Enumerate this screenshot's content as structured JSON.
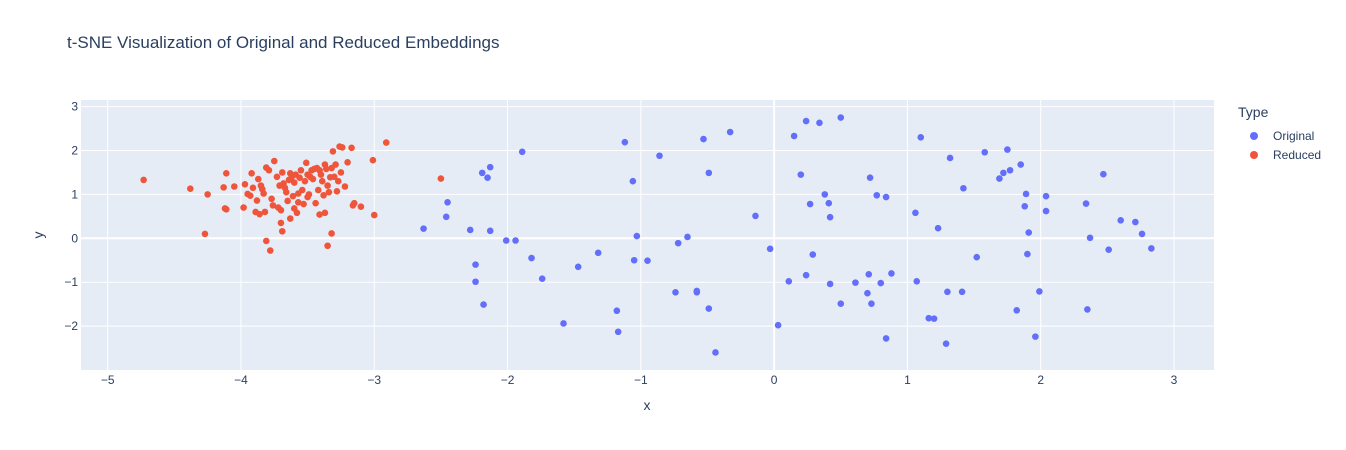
{
  "chart_data": {
    "type": "scatter",
    "title": "t-SNE Visualization of Original and Reduced Embeddings",
    "xlabel": "x",
    "ylabel": "y",
    "xlim": [
      -5.2,
      3.3
    ],
    "ylim": [
      -3.0,
      3.15
    ],
    "xticks": [
      -5,
      -4,
      -3,
      -2,
      -1,
      0,
      1,
      2,
      3
    ],
    "yticks": [
      -2,
      -1,
      0,
      1,
      2,
      3
    ],
    "xtick_labels": [
      "−5",
      "−4",
      "−3",
      "−2",
      "−1",
      "0",
      "1",
      "2",
      "3"
    ],
    "ytick_labels": [
      "−2",
      "−1",
      "0",
      "1",
      "2",
      "3"
    ],
    "grid": true,
    "legend_title": "Type",
    "legend_position": "top-right",
    "series": [
      {
        "name": "Original",
        "color": "#636efa",
        "points": [
          [
            -2.63,
            0.22
          ],
          [
            -2.45,
            0.82
          ],
          [
            -2.46,
            0.49
          ],
          [
            -2.28,
            0.19
          ],
          [
            -2.24,
            -0.6
          ],
          [
            -2.24,
            -0.99
          ],
          [
            -2.19,
            1.49
          ],
          [
            -2.15,
            1.38
          ],
          [
            -2.13,
            1.62
          ],
          [
            -2.13,
            0.17
          ],
          [
            -2.18,
            -1.51
          ],
          [
            -2.01,
            -0.05
          ],
          [
            -1.94,
            -0.05
          ],
          [
            -1.89,
            1.97
          ],
          [
            -1.82,
            -0.45
          ],
          [
            -1.74,
            -0.92
          ],
          [
            -1.58,
            -1.94
          ],
          [
            -1.47,
            -0.65
          ],
          [
            -1.32,
            -0.33
          ],
          [
            -1.18,
            -1.65
          ],
          [
            -1.17,
            -2.13
          ],
          [
            -1.12,
            2.19
          ],
          [
            -1.06,
            1.3
          ],
          [
            -1.03,
            0.05
          ],
          [
            -1.05,
            -0.5
          ],
          [
            -0.95,
            -0.51
          ],
          [
            -0.86,
            1.88
          ],
          [
            -0.74,
            -1.23
          ],
          [
            -0.72,
            -0.11
          ],
          [
            -0.65,
            0.03
          ],
          [
            -0.58,
            -1.2
          ],
          [
            -0.58,
            -1.23
          ],
          [
            -0.53,
            2.26
          ],
          [
            -0.49,
            1.49
          ],
          [
            -0.49,
            -1.6
          ],
          [
            -0.44,
            -2.6
          ],
          [
            -0.33,
            2.42
          ],
          [
            -0.14,
            0.51
          ],
          [
            -0.03,
            -0.24
          ],
          [
            0.03,
            -1.98
          ],
          [
            0.11,
            -0.98
          ],
          [
            0.15,
            2.33
          ],
          [
            0.2,
            1.45
          ],
          [
            0.24,
            2.67
          ],
          [
            0.24,
            -0.84
          ],
          [
            0.27,
            0.78
          ],
          [
            0.29,
            -0.37
          ],
          [
            0.34,
            2.63
          ],
          [
            0.38,
            1.0
          ],
          [
            0.41,
            0.8
          ],
          [
            0.42,
            0.48
          ],
          [
            0.42,
            -1.04
          ],
          [
            0.5,
            2.75
          ],
          [
            0.5,
            -1.49
          ],
          [
            0.61,
            -1.01
          ],
          [
            0.7,
            -1.25
          ],
          [
            0.71,
            -0.82
          ],
          [
            0.72,
            1.38
          ],
          [
            0.73,
            -1.49
          ],
          [
            0.77,
            0.98
          ],
          [
            0.8,
            -1.02
          ],
          [
            0.84,
            0.94
          ],
          [
            0.84,
            -2.28
          ],
          [
            0.88,
            -0.8
          ],
          [
            1.06,
            0.58
          ],
          [
            1.07,
            -0.98
          ],
          [
            1.1,
            2.3
          ],
          [
            1.16,
            -1.82
          ],
          [
            1.2,
            -1.83
          ],
          [
            1.23,
            0.23
          ],
          [
            1.29,
            -2.4
          ],
          [
            1.3,
            -1.22
          ],
          [
            1.32,
            1.83
          ],
          [
            1.41,
            -1.22
          ],
          [
            1.42,
            1.14
          ],
          [
            1.52,
            -0.43
          ],
          [
            1.58,
            1.96
          ],
          [
            1.69,
            1.36
          ],
          [
            1.72,
            1.49
          ],
          [
            1.75,
            2.02
          ],
          [
            1.77,
            1.55
          ],
          [
            1.82,
            -1.64
          ],
          [
            1.85,
            1.68
          ],
          [
            1.88,
            0.73
          ],
          [
            1.89,
            1.01
          ],
          [
            1.9,
            -0.36
          ],
          [
            1.91,
            0.13
          ],
          [
            1.96,
            -2.24
          ],
          [
            1.99,
            -1.21
          ],
          [
            2.04,
            0.96
          ],
          [
            2.04,
            0.62
          ],
          [
            2.34,
            0.79
          ],
          [
            2.35,
            -1.62
          ],
          [
            2.37,
            0.01
          ],
          [
            2.47,
            1.46
          ],
          [
            2.51,
            -0.26
          ],
          [
            2.6,
            0.41
          ],
          [
            2.71,
            0.37
          ],
          [
            2.76,
            0.1
          ],
          [
            2.83,
            -0.23
          ]
        ]
      },
      {
        "name": "Reduced",
        "color": "#ef553b",
        "points": [
          [
            -4.73,
            1.33
          ],
          [
            -4.38,
            1.13
          ],
          [
            -4.27,
            0.1
          ],
          [
            -4.25,
            1.0
          ],
          [
            -4.13,
            1.16
          ],
          [
            -4.12,
            0.68
          ],
          [
            -4.11,
            1.48
          ],
          [
            -4.11,
            0.66
          ],
          [
            -4.05,
            1.18
          ],
          [
            -3.98,
            0.7
          ],
          [
            -3.97,
            1.23
          ],
          [
            -3.95,
            1.01
          ],
          [
            -3.93,
            0.97
          ],
          [
            -3.92,
            1.48
          ],
          [
            -3.91,
            1.15
          ],
          [
            -3.89,
            0.6
          ],
          [
            -3.88,
            0.86
          ],
          [
            -3.87,
            1.35
          ],
          [
            -3.86,
            0.55
          ],
          [
            -3.85,
            1.2
          ],
          [
            -3.84,
            1.12
          ],
          [
            -3.83,
            1.02
          ],
          [
            -3.82,
            0.6
          ],
          [
            -3.81,
            1.61
          ],
          [
            -3.81,
            -0.06
          ],
          [
            -3.79,
            1.55
          ],
          [
            -3.78,
            -0.28
          ],
          [
            -3.77,
            0.9
          ],
          [
            -3.76,
            0.75
          ],
          [
            -3.75,
            1.76
          ],
          [
            -3.73,
            1.4
          ],
          [
            -3.72,
            0.7
          ],
          [
            -3.71,
            1.2
          ],
          [
            -3.7,
            0.64
          ],
          [
            -3.7,
            0.35
          ],
          [
            -3.69,
            1.5
          ],
          [
            -3.69,
            0.16
          ],
          [
            -3.68,
            1.25
          ],
          [
            -3.67,
            1.15
          ],
          [
            -3.66,
            1.05
          ],
          [
            -3.65,
            0.85
          ],
          [
            -3.64,
            1.33
          ],
          [
            -3.63,
            0.45
          ],
          [
            -3.63,
            1.48
          ],
          [
            -3.62,
            1.39
          ],
          [
            -3.61,
            0.96
          ],
          [
            -3.6,
            0.68
          ],
          [
            -3.6,
            1.27
          ],
          [
            -3.59,
            1.45
          ],
          [
            -3.58,
            0.58
          ],
          [
            -3.57,
            0.82
          ],
          [
            -3.57,
            1.02
          ],
          [
            -3.56,
            1.38
          ],
          [
            -3.55,
            1.55
          ],
          [
            -3.54,
            1.1
          ],
          [
            -3.53,
            0.78
          ],
          [
            -3.52,
            1.3
          ],
          [
            -3.51,
            1.72
          ],
          [
            -3.5,
            1.45
          ],
          [
            -3.5,
            0.94
          ],
          [
            -3.49,
            1.0
          ],
          [
            -3.48,
            1.4
          ],
          [
            -3.47,
            1.55
          ],
          [
            -3.46,
            1.35
          ],
          [
            -3.45,
            1.58
          ],
          [
            -3.44,
            0.8
          ],
          [
            -3.43,
            1.6
          ],
          [
            -3.42,
            1.1
          ],
          [
            -3.41,
            1.55
          ],
          [
            -3.41,
            0.54
          ],
          [
            -3.4,
            1.45
          ],
          [
            -3.39,
            1.3
          ],
          [
            -3.38,
            0.98
          ],
          [
            -3.37,
            1.68
          ],
          [
            -3.37,
            0.58
          ],
          [
            -3.36,
            1.58
          ],
          [
            -3.35,
            1.2
          ],
          [
            -3.35,
            -0.17
          ],
          [
            -3.34,
            1.05
          ],
          [
            -3.33,
            1.39
          ],
          [
            -3.32,
            0.11
          ],
          [
            -3.32,
            1.6
          ],
          [
            -3.31,
            1.98
          ],
          [
            -3.3,
            1.4
          ],
          [
            -3.29,
            1.68
          ],
          [
            -3.28,
            1.07
          ],
          [
            -3.27,
            1.3
          ],
          [
            -3.26,
            2.09
          ],
          [
            -3.25,
            1.5
          ],
          [
            -3.24,
            2.07
          ],
          [
            -3.22,
            1.18
          ],
          [
            -3.2,
            1.73
          ],
          [
            -3.17,
            2.06
          ],
          [
            -3.16,
            0.75
          ],
          [
            -3.15,
            0.8
          ],
          [
            -3.1,
            0.72
          ],
          [
            -3.0,
            0.53
          ],
          [
            -3.01,
            1.78
          ],
          [
            -2.91,
            2.18
          ],
          [
            -2.5,
            1.36
          ]
        ]
      }
    ]
  }
}
